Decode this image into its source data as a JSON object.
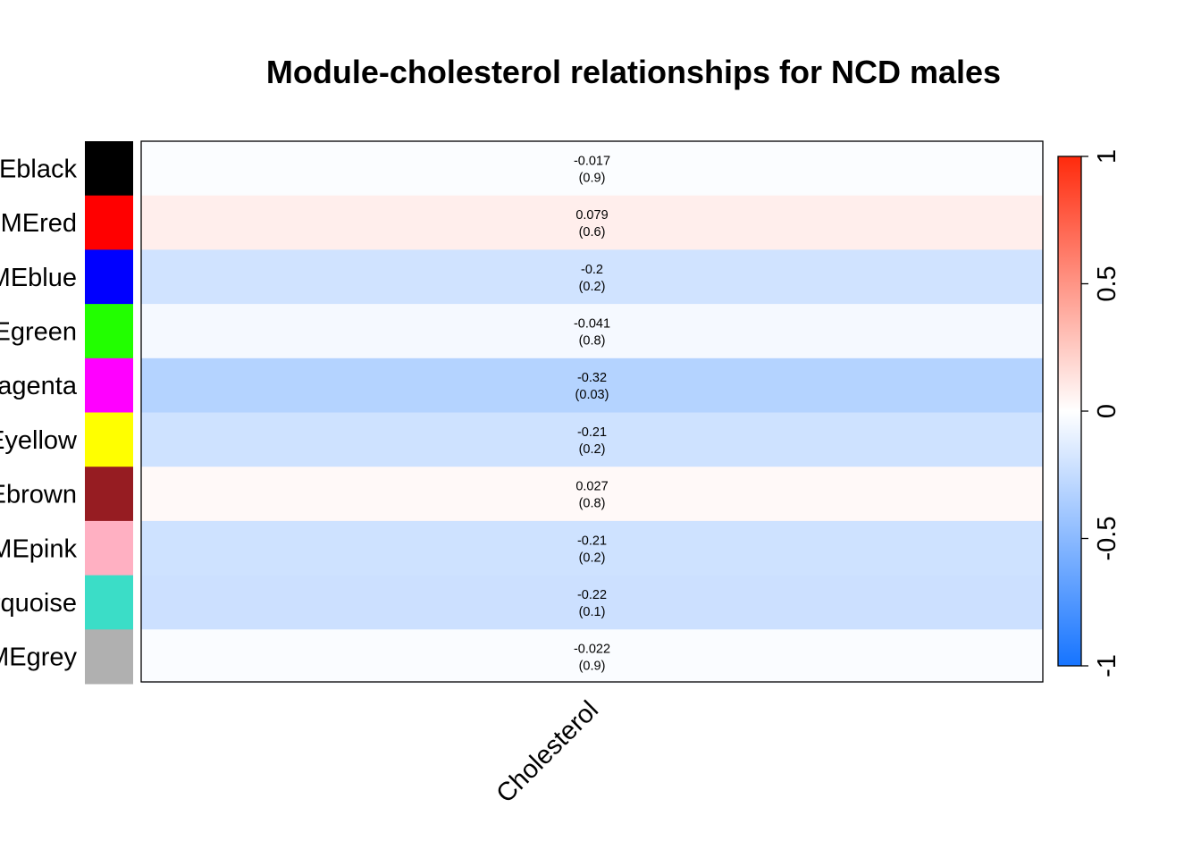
{
  "chart_data": {
    "type": "heatmap",
    "title": "Module-cholesterol relationships for NCD males",
    "columns": [
      "Cholesterol"
    ],
    "rows": [
      {
        "label": "MEblack",
        "module_color": "#000000",
        "correlation": -0.017,
        "p_value": "(0.9)",
        "value_text": "-0.017"
      },
      {
        "label": "MEred",
        "module_color": "#ff0000",
        "correlation": 0.079,
        "p_value": "(0.6)",
        "value_text": "0.079"
      },
      {
        "label": "MEblue",
        "module_color": "#0000ff",
        "correlation": -0.2,
        "p_value": "(0.2)",
        "value_text": "-0.2"
      },
      {
        "label": "MEgreen",
        "module_color": "#22ff00",
        "correlation": -0.041,
        "p_value": "(0.8)",
        "value_text": "-0.041"
      },
      {
        "label": "MEmagenta",
        "module_color": "#ff00ff",
        "correlation": -0.32,
        "p_value": "(0.03)",
        "value_text": "-0.32"
      },
      {
        "label": "MEyellow",
        "module_color": "#ffff00",
        "correlation": -0.21,
        "p_value": "(0.2)",
        "value_text": "-0.21"
      },
      {
        "label": "MEbrown",
        "module_color": "#961c22",
        "correlation": 0.027,
        "p_value": "(0.8)",
        "value_text": "0.027"
      },
      {
        "label": "MEpink",
        "module_color": "#ffb0c2",
        "correlation": -0.21,
        "p_value": "(0.2)",
        "value_text": "-0.21"
      },
      {
        "label": "MEturquoise",
        "module_color": "#3bddc7",
        "correlation": -0.22,
        "p_value": "(0.1)",
        "value_text": "-0.22"
      },
      {
        "label": "MEgrey",
        "module_color": "#b0b0b0",
        "correlation": -0.022,
        "p_value": "(0.9)",
        "value_text": "-0.022"
      }
    ],
    "colorbar": {
      "range": [
        -1,
        1
      ],
      "ticks": [
        "-1",
        "-0.5",
        "0",
        "0.5",
        "1"
      ],
      "colors": {
        "negative": "#1674ff",
        "zero": "#ffffff",
        "positive": "#ff2a0c"
      }
    }
  }
}
